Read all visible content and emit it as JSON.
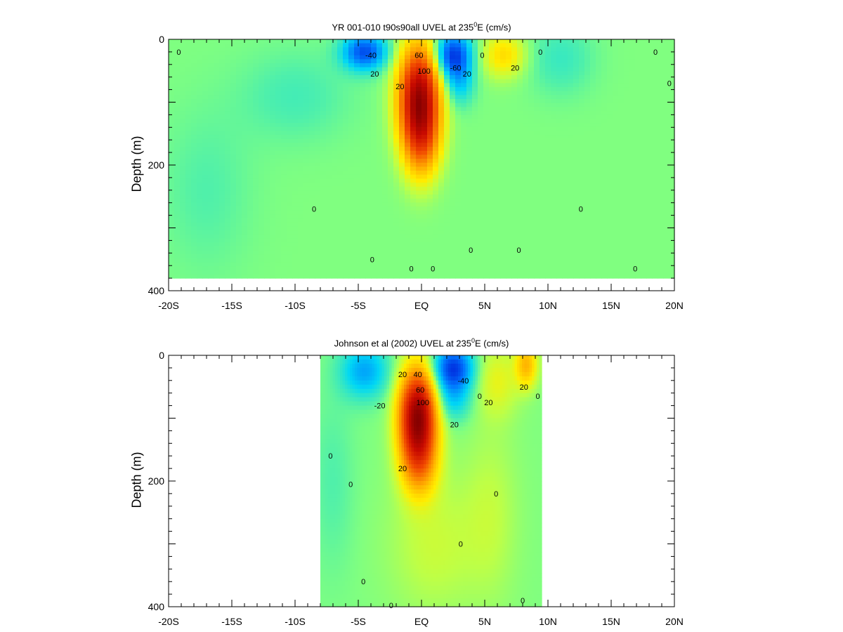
{
  "chart_data": [
    {
      "type": "heatmap",
      "title": {
        "main": "YR 001-010 t90s90all UVEL at 235",
        "sup": "0",
        "tail": "E (cm/s)"
      },
      "xlabel": "",
      "ylabel": "Depth (m)",
      "xlim": [
        -20,
        20
      ],
      "ylim": [
        400,
        0
      ],
      "xticks": [
        {
          "v": -20,
          "label": "-20S"
        },
        {
          "v": -15,
          "label": "-15S"
        },
        {
          "v": -10,
          "label": "-10S"
        },
        {
          "v": -5,
          "label": "-5S"
        },
        {
          "v": 0,
          "label": "EQ"
        },
        {
          "v": 5,
          "label": "5N"
        },
        {
          "v": 10,
          "label": "10N"
        },
        {
          "v": 15,
          "label": "15N"
        },
        {
          "v": 20,
          "label": "20N"
        }
      ],
      "yticks": [
        {
          "v": 0,
          "label": "0"
        },
        {
          "v": 200,
          "label": "200"
        },
        {
          "v": 400,
          "label": "400"
        }
      ],
      "data_extent": {
        "lat": [
          -20,
          20
        ],
        "depth": [
          0,
          380
        ]
      },
      "features": [
        {
          "lat": -0.2,
          "depth": 90,
          "value": 110,
          "dlat": 1.1,
          "ddepth": 55
        },
        {
          "lat": 0,
          "depth": 160,
          "value": 45,
          "dlat": 1.0,
          "ddepth": 45
        },
        {
          "lat": -4.5,
          "depth": 20,
          "value": -50,
          "dlat": 1.2,
          "ddepth": 20
        },
        {
          "lat": 2.5,
          "depth": 25,
          "value": -55,
          "dlat": 1.0,
          "ddepth": 25
        },
        {
          "lat": 3.0,
          "depth": 70,
          "value": -20,
          "dlat": 0.8,
          "ddepth": 25
        },
        {
          "lat": 6.5,
          "depth": 25,
          "value": 25,
          "dlat": 1.2,
          "ddepth": 25
        },
        {
          "lat": 11,
          "depth": 30,
          "value": -10,
          "dlat": 1.8,
          "ddepth": 40
        },
        {
          "lat": -10,
          "depth": 90,
          "value": -8,
          "dlat": 3,
          "ddepth": 50
        },
        {
          "lat": -17,
          "depth": 240,
          "value": -6,
          "dlat": 2.5,
          "ddepth": 90
        }
      ],
      "contour_labels": [
        {
          "lat": -4,
          "depth": 25,
          "text": "-40"
        },
        {
          "lat": -3.7,
          "depth": 55,
          "text": "20"
        },
        {
          "lat": -1.7,
          "depth": 75,
          "text": "20"
        },
        {
          "lat": -0.2,
          "depth": 25,
          "text": "60"
        },
        {
          "lat": 0.2,
          "depth": 50,
          "text": "100"
        },
        {
          "lat": 2.7,
          "depth": 45,
          "text": "-60"
        },
        {
          "lat": 3.6,
          "depth": 55,
          "text": "20"
        },
        {
          "lat": 4.8,
          "depth": 25,
          "text": "0"
        },
        {
          "lat": 7.4,
          "depth": 45,
          "text": "20"
        },
        {
          "lat": 9.4,
          "depth": 20,
          "text": "0"
        },
        {
          "lat": -19.2,
          "depth": 20,
          "text": "0"
        },
        {
          "lat": 18.5,
          "depth": 20,
          "text": "0"
        },
        {
          "lat": 19.6,
          "depth": 70,
          "text": "0"
        },
        {
          "lat": -8.5,
          "depth": 270,
          "text": "0"
        },
        {
          "lat": 12.6,
          "depth": 270,
          "text": "0"
        },
        {
          "lat": 3.9,
          "depth": 335,
          "text": "0"
        },
        {
          "lat": 7.7,
          "depth": 335,
          "text": "0"
        },
        {
          "lat": -3.9,
          "depth": 350,
          "text": "0"
        },
        {
          "lat": -0.8,
          "depth": 365,
          "text": "0"
        },
        {
          "lat": 0.9,
          "depth": 365,
          "text": "0"
        },
        {
          "lat": 16.9,
          "depth": 365,
          "text": "0"
        }
      ]
    },
    {
      "type": "heatmap",
      "title": {
        "main": "Johnson et al (2002) UVEL at 235",
        "sup": "0",
        "tail": "E (cm/s)"
      },
      "xlabel": "",
      "ylabel": "Depth (m)",
      "xlim": [
        -20,
        20
      ],
      "ylim": [
        400,
        0
      ],
      "xticks": [
        {
          "v": -20,
          "label": "-20S"
        },
        {
          "v": -15,
          "label": "-15S"
        },
        {
          "v": -10,
          "label": "-10S"
        },
        {
          "v": -5,
          "label": "-5S"
        },
        {
          "v": 0,
          "label": "EQ"
        },
        {
          "v": 5,
          "label": "5N"
        },
        {
          "v": 10,
          "label": "10N"
        },
        {
          "v": 15,
          "label": "15N"
        },
        {
          "v": 20,
          "label": "20N"
        }
      ],
      "yticks": [
        {
          "v": 0,
          "label": "0"
        },
        {
          "v": 200,
          "label": "200"
        },
        {
          "v": 400,
          "label": "400"
        }
      ],
      "data_extent": {
        "lat": [
          -8,
          9.5
        ],
        "depth": [
          0,
          400
        ]
      },
      "features": [
        {
          "lat": -0.3,
          "depth": 95,
          "value": 120,
          "dlat": 1.0,
          "ddepth": 50
        },
        {
          "lat": -0.2,
          "depth": 170,
          "value": 40,
          "dlat": 1.0,
          "ddepth": 40
        },
        {
          "lat": -4.5,
          "depth": 25,
          "value": -30,
          "dlat": 1.3,
          "ddepth": 30
        },
        {
          "lat": 2.5,
          "depth": 20,
          "value": -55,
          "dlat": 1.1,
          "ddepth": 25
        },
        {
          "lat": 2.5,
          "depth": 70,
          "value": -20,
          "dlat": 1.0,
          "ddepth": 25
        },
        {
          "lat": 6,
          "depth": 40,
          "value": 15,
          "dlat": 1.2,
          "ddepth": 40
        },
        {
          "lat": 8.3,
          "depth": 15,
          "value": 35,
          "dlat": 0.6,
          "ddepth": 25
        },
        {
          "lat": 1,
          "depth": 300,
          "value": 10,
          "dlat": 2.5,
          "ddepth": 80
        },
        {
          "lat": -7,
          "depth": 200,
          "value": -6,
          "dlat": 1.2,
          "ddepth": 100
        },
        {
          "lat": 5.5,
          "depth": 250,
          "value": 8,
          "dlat": 1.5,
          "ddepth": 100
        }
      ],
      "contour_labels": [
        {
          "lat": -3.3,
          "depth": 80,
          "text": "-20"
        },
        {
          "lat": -1.5,
          "depth": 30,
          "text": "20"
        },
        {
          "lat": -0.3,
          "depth": 30,
          "text": "40"
        },
        {
          "lat": -0.1,
          "depth": 55,
          "text": "60"
        },
        {
          "lat": 0.1,
          "depth": 75,
          "text": "100"
        },
        {
          "lat": 3.3,
          "depth": 40,
          "text": "-40"
        },
        {
          "lat": 5.3,
          "depth": 75,
          "text": "20"
        },
        {
          "lat": 2.6,
          "depth": 110,
          "text": "20"
        },
        {
          "lat": 4.6,
          "depth": 65,
          "text": "0"
        },
        {
          "lat": 8.1,
          "depth": 50,
          "text": "20"
        },
        {
          "lat": 9.2,
          "depth": 65,
          "text": "0"
        },
        {
          "lat": -1.5,
          "depth": 180,
          "text": "20"
        },
        {
          "lat": -7.2,
          "depth": 160,
          "text": "0"
        },
        {
          "lat": -5.6,
          "depth": 205,
          "text": "0"
        },
        {
          "lat": 5.9,
          "depth": 220,
          "text": "0"
        },
        {
          "lat": 3.1,
          "depth": 300,
          "text": "0"
        },
        {
          "lat": -4.6,
          "depth": 360,
          "text": "0"
        },
        {
          "lat": 8,
          "depth": 390,
          "text": "0"
        },
        {
          "lat": -2.4,
          "depth": 398,
          "text": "0"
        }
      ]
    }
  ]
}
